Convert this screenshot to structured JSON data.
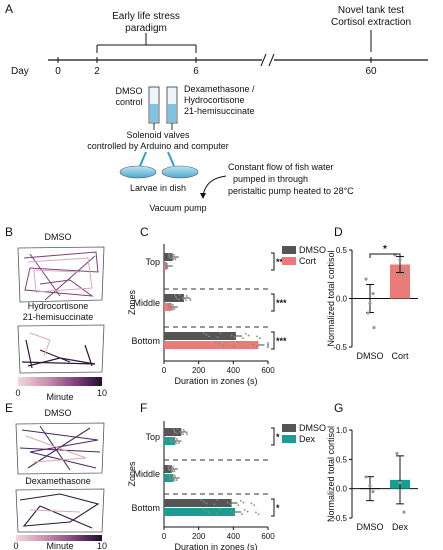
{
  "panel_letters": {
    "a": "A",
    "b": "B",
    "c": "C",
    "d": "D",
    "e": "E",
    "f": "F",
    "g": "G"
  },
  "timeline": {
    "day_label": "Day",
    "days": [
      "0",
      "2",
      "6",
      "60"
    ],
    "els_label_1": "Early life stress",
    "els_label_2": "paradigm",
    "ntt_label_1": "Novel tank test",
    "ntt_label_2": "Cortisol extraction"
  },
  "setup": {
    "dmso_label_1": "DMSO",
    "dmso_label_2": "control",
    "drug_label_1": "Dexamethasone /",
    "drug_label_2": "Hydrocortisone",
    "drug_label_3": "21-hemisuccinate",
    "valves_1": "Solenoid valves",
    "valves_2": "controlled by Arduino and computer",
    "larvae": "Larvae in dish",
    "flow_1": "Constant flow of fish water",
    "flow_2": "pumped in through",
    "flow_3": "peristaltic pump heated to 28°C",
    "vacuum": "Vacuum pump"
  },
  "tracks_B": {
    "top_label": "DMSO",
    "bottom_label_1": "Hydrocortisone",
    "bottom_label_2": "21-hemisuccinate",
    "scale_min": "0",
    "scale_max": "10",
    "scale_label": "Minute"
  },
  "tracks_E": {
    "top_label": "DMSO",
    "bottom_label": "Dexamethasone",
    "scale_min": "0",
    "scale_max": "10",
    "scale_label": "Minute"
  },
  "colors": {
    "dmso": "#555555",
    "cort": "#ea7b78",
    "dex": "#1a9e94",
    "track_dark": "#2b1a3a",
    "track_light": "#d8a9b9"
  },
  "chart_data": [
    {
      "panel": "C",
      "type": "bar",
      "orientation": "horizontal",
      "categories": [
        "Top",
        "Middle",
        "Bottom"
      ],
      "series": [
        {
          "name": "DMSO",
          "values": [
            50,
            115,
            415
          ]
        },
        {
          "name": "Cort",
          "values": [
            15,
            45,
            545
          ]
        }
      ],
      "xlabel": "Duration in zones (s)",
      "ylabel": "Zones",
      "xlim": [
        0,
        600
      ],
      "xticks": [
        "0",
        "200",
        "400",
        "600"
      ],
      "significance": [
        "**",
        "***",
        "***"
      ]
    },
    {
      "panel": "D",
      "type": "bar",
      "categories": [
        "DMSO",
        "Cort"
      ],
      "values": [
        0.0,
        0.35
      ],
      "ylabel": "Normalized total cortisol",
      "ylim": [
        -0.5,
        0.5
      ],
      "yticks": [
        "-0.5",
        "0.0",
        "0.5"
      ],
      "significance": "*"
    },
    {
      "panel": "F",
      "type": "bar",
      "orientation": "horizontal",
      "categories": [
        "Top",
        "Middle",
        "Bottom"
      ],
      "series": [
        {
          "name": "DMSO",
          "values": [
            100,
            45,
            390
          ]
        },
        {
          "name": "Dex",
          "values": [
            65,
            55,
            410
          ]
        }
      ],
      "xlabel": "Duration in zones (s)",
      "ylabel": "Zones",
      "xlim": [
        0,
        600
      ],
      "xticks": [
        "0",
        "200",
        "400",
        "600"
      ],
      "significance": [
        "*",
        "",
        "*"
      ]
    },
    {
      "panel": "G",
      "type": "bar",
      "categories": [
        "DMSO",
        "Dex"
      ],
      "values": [
        0.0,
        0.15
      ],
      "ylabel": "Normalized total cortisol",
      "ylim": [
        -0.5,
        1.0
      ],
      "yticks": [
        "-0.5",
        "0.0",
        "0.5",
        "1.0"
      ]
    }
  ]
}
